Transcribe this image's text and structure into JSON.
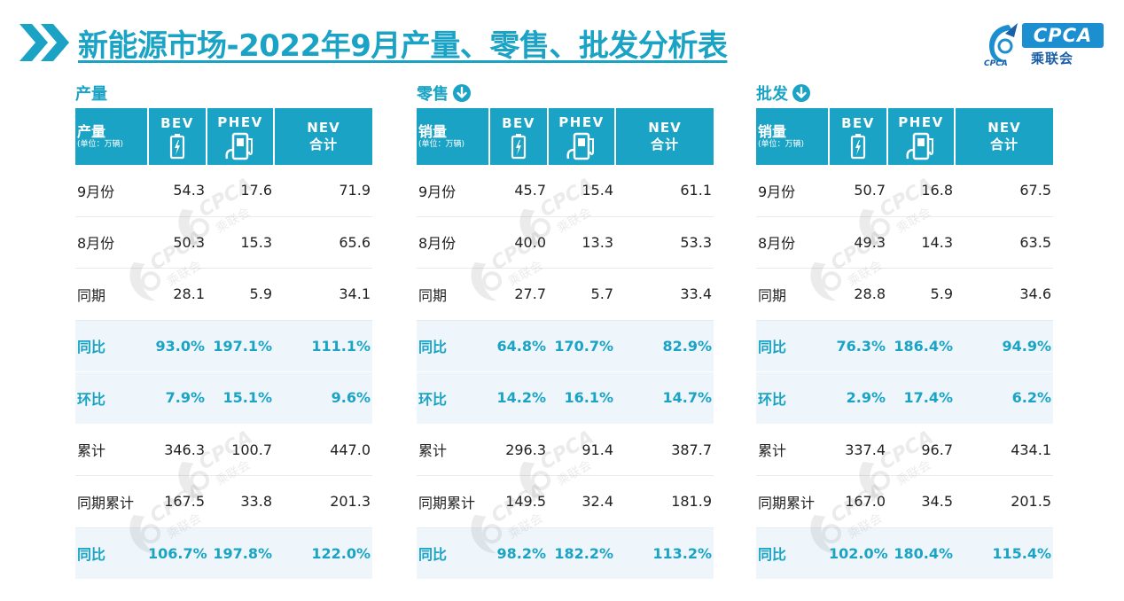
{
  "header": {
    "title": "新能源市场-2022年9月产量、零售、批发分析表",
    "logo_text": "CPCA",
    "logo_subtitle": "乘联会",
    "logo_mark_text": "CPCA"
  },
  "columns": {
    "bev": "BEV",
    "phev": "PHEV",
    "nev_code": "NEV",
    "nev_sum": "合计",
    "unit": "(单位：万辆)"
  },
  "watermark": {
    "brand": "CPCA",
    "sub": "乘联会"
  },
  "sections": [
    {
      "title": "产量",
      "first_header": "产量",
      "has_down_icon": false,
      "rows": [
        {
          "label": "9月份",
          "bev": "54.3",
          "phev": "17.6",
          "nev": "71.9",
          "highlight": false
        },
        {
          "label": "8月份",
          "bev": "50.3",
          "phev": "15.3",
          "nev": "65.6",
          "highlight": false
        },
        {
          "label": "同期",
          "bev": "28.1",
          "phev": "5.9",
          "nev": "34.1",
          "highlight": false
        },
        {
          "label": "同比",
          "bev": "93.0%",
          "phev": "197.1%",
          "nev": "111.1%",
          "highlight": true
        },
        {
          "label": "环比",
          "bev": "7.9%",
          "phev": "15.1%",
          "nev": "9.6%",
          "highlight": true
        },
        {
          "label": "累计",
          "bev": "346.3",
          "phev": "100.7",
          "nev": "447.0",
          "highlight": false
        },
        {
          "label": "同期累计",
          "bev": "167.5",
          "phev": "33.8",
          "nev": "201.3",
          "highlight": false
        },
        {
          "label": "同比",
          "bev": "106.7%",
          "phev": "197.8%",
          "nev": "122.0%",
          "highlight": true
        }
      ]
    },
    {
      "title": "零售",
      "first_header": "销量",
      "has_down_icon": true,
      "rows": [
        {
          "label": "9月份",
          "bev": "45.7",
          "phev": "15.4",
          "nev": "61.1",
          "highlight": false
        },
        {
          "label": "8月份",
          "bev": "40.0",
          "phev": "13.3",
          "nev": "53.3",
          "highlight": false
        },
        {
          "label": "同期",
          "bev": "27.7",
          "phev": "5.7",
          "nev": "33.4",
          "highlight": false
        },
        {
          "label": "同比",
          "bev": "64.8%",
          "phev": "170.7%",
          "nev": "82.9%",
          "highlight": true
        },
        {
          "label": "环比",
          "bev": "14.2%",
          "phev": "16.1%",
          "nev": "14.7%",
          "highlight": true
        },
        {
          "label": "累计",
          "bev": "296.3",
          "phev": "91.4",
          "nev": "387.7",
          "highlight": false
        },
        {
          "label": "同期累计",
          "bev": "149.5",
          "phev": "32.4",
          "nev": "181.9",
          "highlight": false
        },
        {
          "label": "同比",
          "bev": "98.2%",
          "phev": "182.2%",
          "nev": "113.2%",
          "highlight": true
        }
      ]
    },
    {
      "title": "批发",
      "first_header": "销量",
      "has_down_icon": true,
      "rows": [
        {
          "label": "9月份",
          "bev": "50.7",
          "phev": "16.8",
          "nev": "67.5",
          "highlight": false
        },
        {
          "label": "8月份",
          "bev": "49.3",
          "phev": "14.3",
          "nev": "63.5",
          "highlight": false
        },
        {
          "label": "同期",
          "bev": "28.8",
          "phev": "5.9",
          "nev": "34.6",
          "highlight": false
        },
        {
          "label": "同比",
          "bev": "76.3%",
          "phev": "186.4%",
          "nev": "94.9%",
          "highlight": true
        },
        {
          "label": "环比",
          "bev": "2.9%",
          "phev": "17.4%",
          "nev": "6.2%",
          "highlight": true
        },
        {
          "label": "累计",
          "bev": "337.4",
          "phev": "96.7",
          "nev": "434.1",
          "highlight": false
        },
        {
          "label": "同期累计",
          "bev": "167.0",
          "phev": "34.5",
          "nev": "201.5",
          "highlight": false
        },
        {
          "label": "同比",
          "bev": "102.0%",
          "phev": "180.4%",
          "nev": "115.4%",
          "highlight": true
        }
      ]
    }
  ],
  "colors": {
    "accent": "#1aa3c4",
    "highlight_row": "#eef6fb",
    "logo_blue": "#1b8fd0"
  }
}
